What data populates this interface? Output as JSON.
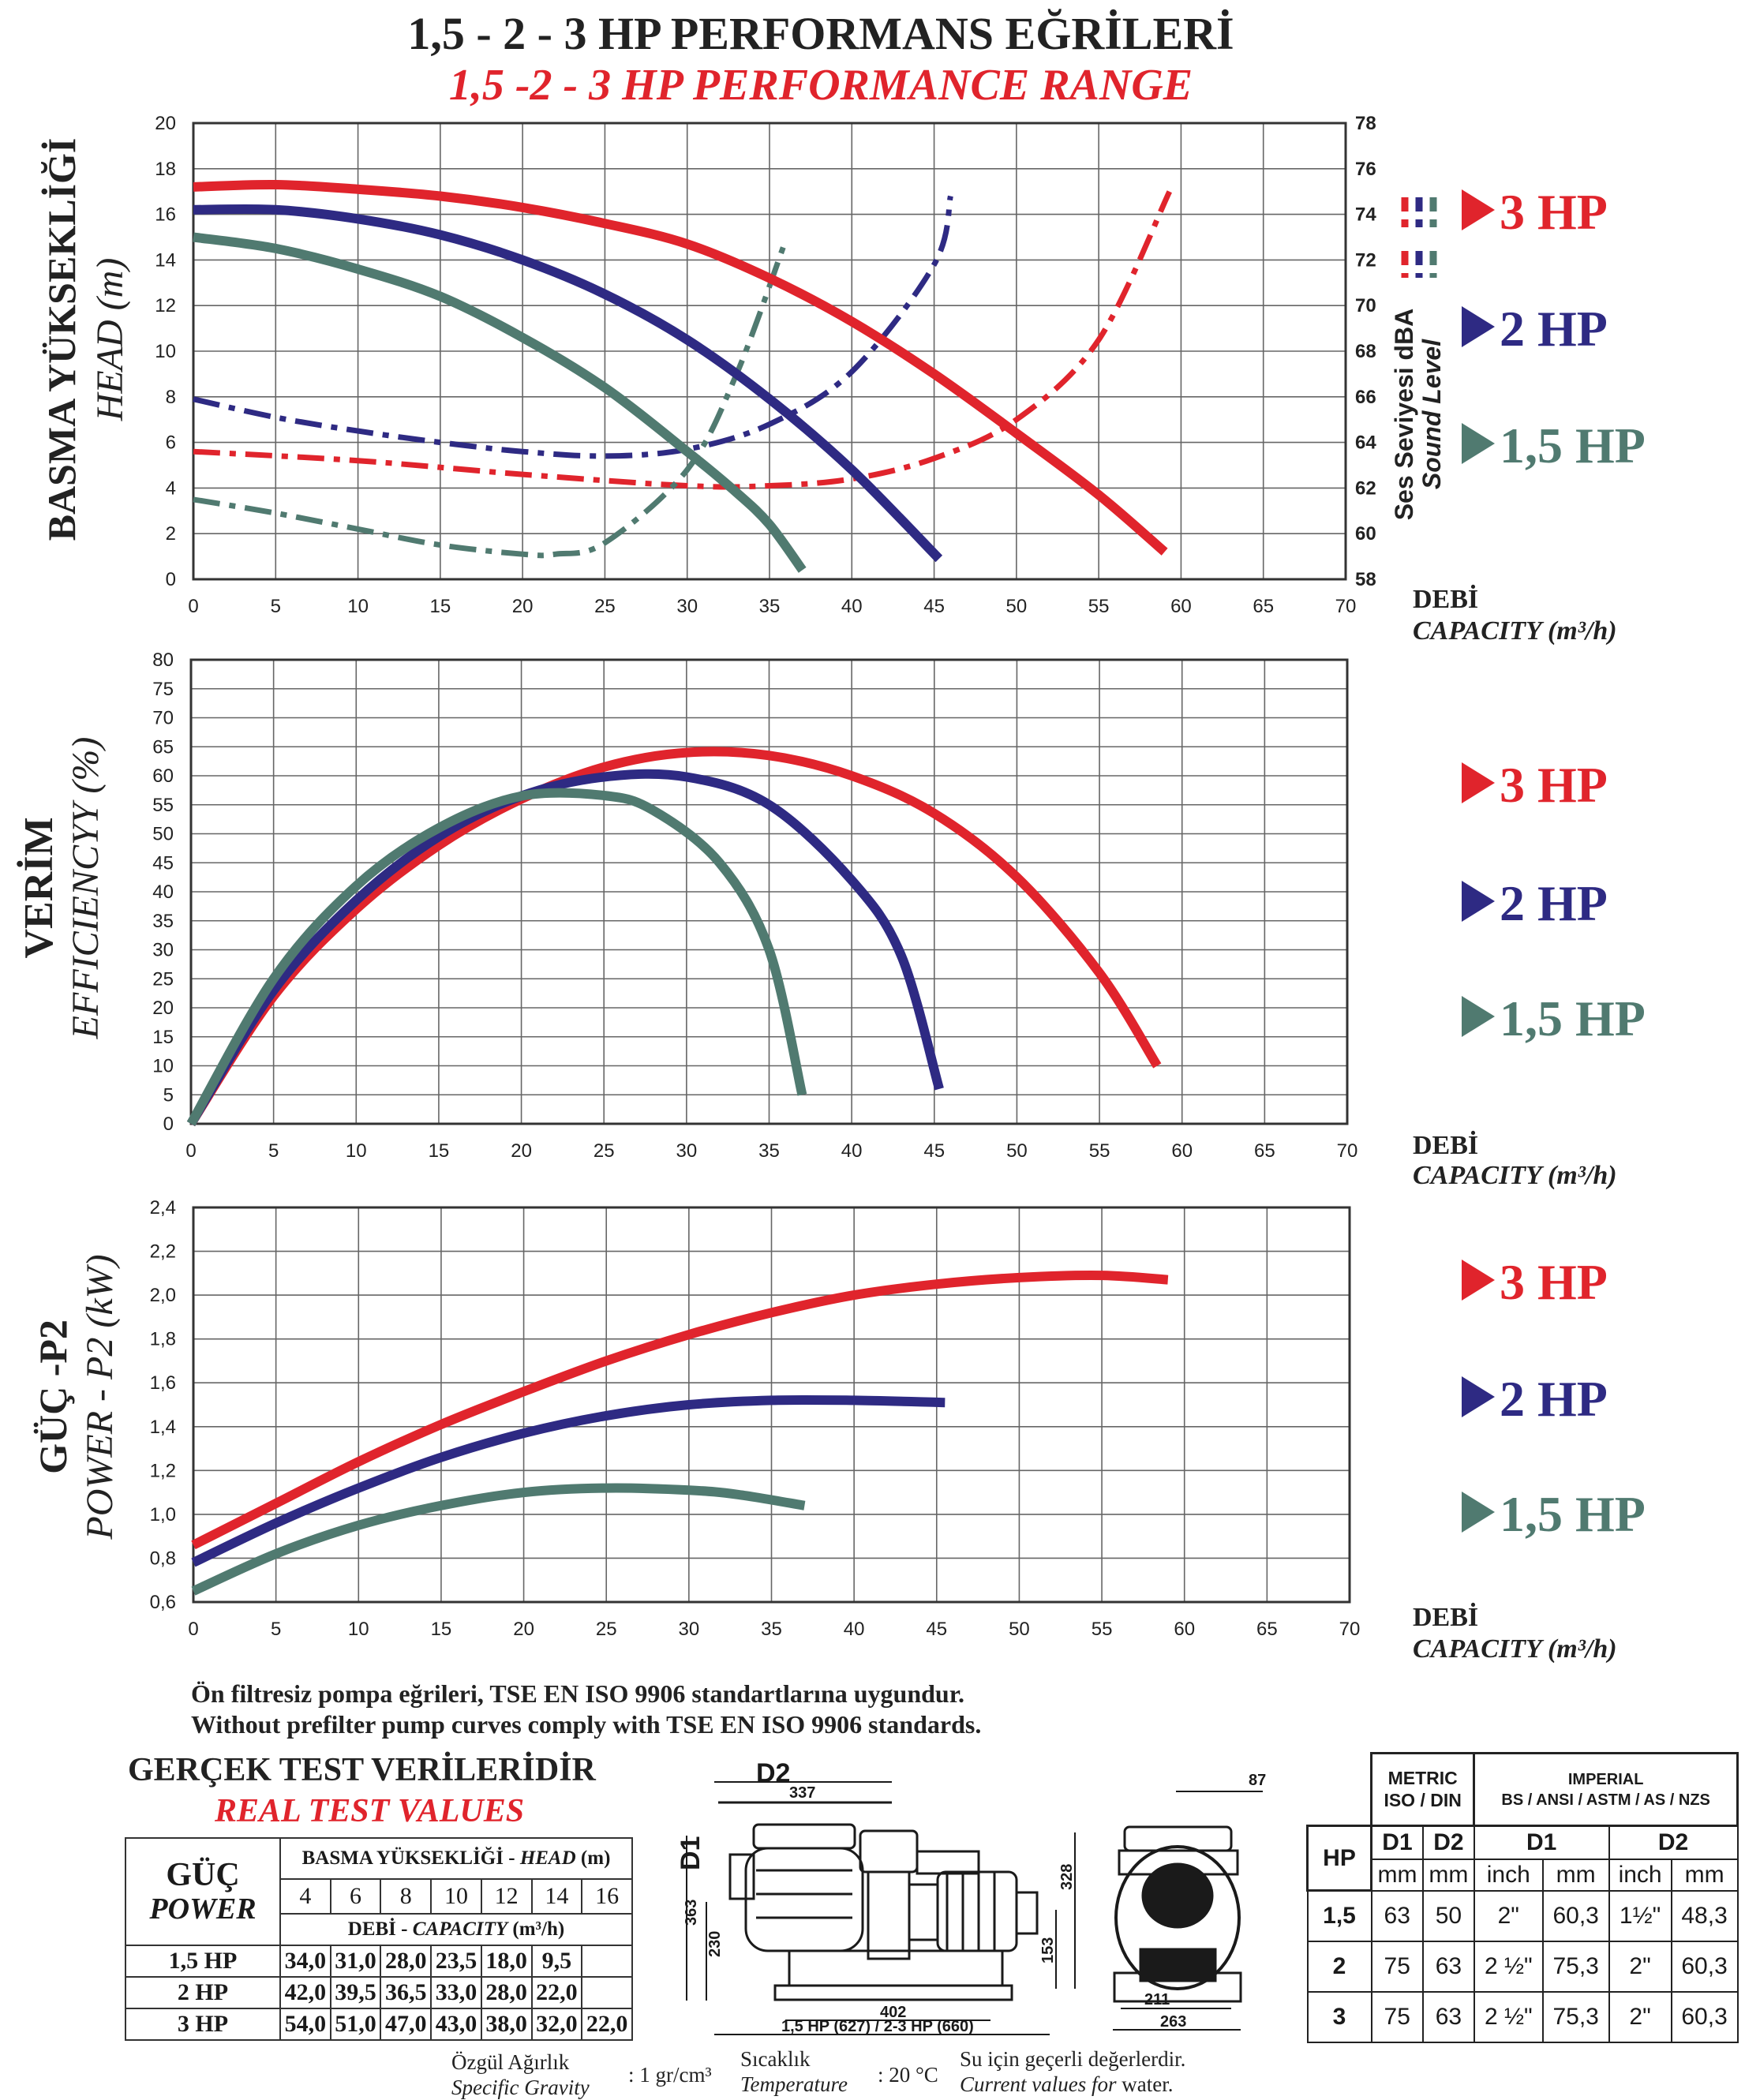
{
  "title": {
    "tr": "1,5 - 2 - 3 HP PERFORMANS EĞRİLERİ",
    "en": "1,5 -2 - 3 HP PERFORMANCE RANGE"
  },
  "colors": {
    "hp3": "#e0242c",
    "hp2": "#2e2a83",
    "hp15": "#507a70"
  },
  "legend_labels": [
    "3 HP",
    "2 HP",
    "1,5 HP"
  ],
  "chart_data": [
    {
      "type": "line",
      "id": "head",
      "ylabel_tr": "BASMA YÜKSEKLİĞİ",
      "ylabel_en": "HEAD (m)",
      "y2label_tr": "Ses Seviyesi dBA",
      "y2label_en": "Sound Level",
      "xlabel_tr": "DEBİ",
      "xlabel_en": "CAPACITY (m³/h)",
      "xlim": [
        0,
        70
      ],
      "ylim": [
        0,
        20
      ],
      "y2lim": [
        58,
        78
      ],
      "xticks": [
        "0",
        "5",
        "10",
        "15",
        "20",
        "25",
        "30",
        "35",
        "40",
        "45",
        "50",
        "55",
        "60",
        "65",
        "70"
      ],
      "yticks": [
        "0",
        "2",
        "4",
        "6",
        "8",
        "10",
        "12",
        "14",
        "16",
        "18",
        "20"
      ],
      "y2ticks": [
        "58",
        "60",
        "62",
        "64",
        "66",
        "68",
        "70",
        "72",
        "74",
        "76",
        "78"
      ],
      "series": [
        {
          "name": "3 HP",
          "x": [
            0,
            5,
            10,
            15,
            20,
            25,
            30,
            35,
            40,
            45,
            50,
            55,
            59
          ],
          "values": [
            17.2,
            17.3,
            17.1,
            16.8,
            16.3,
            15.6,
            14.7,
            13.2,
            11.3,
            9.0,
            6.4,
            3.7,
            1.2
          ]
        },
        {
          "name": "2 HP",
          "x": [
            0,
            5,
            10,
            15,
            20,
            25,
            30,
            35,
            40,
            45.3
          ],
          "values": [
            16.2,
            16.2,
            15.8,
            15.1,
            14.0,
            12.5,
            10.5,
            7.9,
            4.8,
            0.9
          ]
        },
        {
          "name": "1,5 HP",
          "x": [
            0,
            5,
            10,
            15,
            20,
            25,
            30,
            33,
            35,
            37
          ],
          "values": [
            15.0,
            14.5,
            13.6,
            12.4,
            10.6,
            8.4,
            5.6,
            3.8,
            2.4,
            0.4
          ]
        }
      ],
      "sound_series": [
        {
          "name": "3 HP",
          "x": [
            0,
            10,
            20,
            30,
            35,
            40,
            45,
            50,
            55,
            59.3
          ],
          "values": [
            63.6,
            63.2,
            62.6,
            62.1,
            62.1,
            62.4,
            63.3,
            65.0,
            68.5,
            75.0
          ]
        },
        {
          "name": "2 HP",
          "x": [
            0,
            5,
            10,
            15,
            20,
            25,
            30,
            35,
            40,
            45,
            46
          ],
          "values": [
            65.9,
            65.1,
            64.5,
            64.0,
            63.6,
            63.4,
            63.7,
            64.8,
            67.1,
            71.8,
            74.8
          ]
        },
        {
          "name": "1,5 HP",
          "x": [
            0,
            5,
            10,
            15,
            20,
            22,
            25,
            30,
            33,
            36
          ],
          "values": [
            61.5,
            60.9,
            60.2,
            59.5,
            59.1,
            59.1,
            59.6,
            62.8,
            67.0,
            72.9
          ]
        }
      ]
    },
    {
      "type": "line",
      "id": "efficiency",
      "ylabel_tr": "VERİM",
      "ylabel_en": "EFFICIENCYY (%)",
      "xlabel_tr": "DEBİ",
      "xlabel_en": "CAPACITY (m³/h)",
      "xlim": [
        0,
        70
      ],
      "ylim": [
        0,
        80
      ],
      "xticks": [
        "0",
        "5",
        "10",
        "15",
        "20",
        "25",
        "30",
        "35",
        "40",
        "45",
        "50",
        "55",
        "60",
        "65",
        "70"
      ],
      "yticks": [
        "0",
        "5",
        "10",
        "15",
        "20",
        "25",
        "30",
        "35",
        "40",
        "45",
        "50",
        "55",
        "60",
        "65",
        "70",
        "75",
        "80"
      ],
      "series": [
        {
          "name": "3 HP",
          "x": [
            0,
            5,
            10,
            15,
            20,
            25,
            30,
            35,
            40,
            45,
            50,
            55,
            58.5
          ],
          "values": [
            0,
            22,
            37,
            48,
            56,
            61.5,
            64,
            63.5,
            60,
            53.5,
            42.5,
            26,
            10
          ]
        },
        {
          "name": "2 HP",
          "x": [
            0,
            5,
            10,
            15,
            20,
            25,
            30,
            35,
            40,
            43,
            45.3
          ],
          "values": [
            0,
            23,
            38.5,
            49.5,
            56.5,
            59.8,
            59.8,
            55,
            42,
            29,
            6
          ]
        },
        {
          "name": "1,5 HP",
          "x": [
            0,
            5,
            10,
            15,
            20,
            25,
            28,
            32,
            35,
            37
          ],
          "values": [
            0,
            25,
            41,
            51,
            56.5,
            56.6,
            54,
            45,
            30,
            5
          ]
        }
      ]
    },
    {
      "type": "line",
      "id": "power",
      "ylabel_tr": "GÜÇ -P2",
      "ylabel_en": "POWER - P2 (kW)",
      "xlabel_tr": "DEBİ",
      "xlabel_en": "CAPACITY (m³/h)",
      "xlim": [
        0,
        70
      ],
      "ylim": [
        0.6,
        2.4
      ],
      "xticks": [
        "0",
        "5",
        "10",
        "15",
        "20",
        "25",
        "30",
        "35",
        "40",
        "45",
        "50",
        "55",
        "60",
        "65",
        "70"
      ],
      "yticks": [
        "0,6",
        "0,8",
        "1,0",
        "1,2",
        "1,4",
        "1,6",
        "1,8",
        "2,0",
        "2,2",
        "2,4"
      ],
      "series": [
        {
          "name": "3 HP",
          "x": [
            0,
            5,
            10,
            15,
            20,
            25,
            30,
            35,
            40,
            45,
            50,
            55,
            59
          ],
          "values": [
            0.86,
            1.05,
            1.24,
            1.41,
            1.56,
            1.7,
            1.82,
            1.92,
            2.0,
            2.05,
            2.08,
            2.09,
            2.07
          ]
        },
        {
          "name": "2 HP",
          "x": [
            0,
            5,
            10,
            15,
            20,
            25,
            30,
            35,
            40,
            45.5
          ],
          "values": [
            0.78,
            0.96,
            1.12,
            1.26,
            1.37,
            1.45,
            1.5,
            1.52,
            1.52,
            1.51
          ]
        },
        {
          "name": "1,5 HP",
          "x": [
            0,
            5,
            10,
            15,
            20,
            25,
            30,
            33,
            37
          ],
          "values": [
            0.65,
            0.82,
            0.95,
            1.04,
            1.1,
            1.12,
            1.11,
            1.09,
            1.04
          ]
        }
      ]
    }
  ],
  "note": {
    "tr": "Ön filtresiz pompa eğrileri, TSE EN ISO 9906 standartlarına uygundur.",
    "en": "Without prefilter pump curves comply with TSE EN ISO 9906 standards."
  },
  "real_test": {
    "title_tr": "GERÇEK TEST VERİLERİDİR",
    "title_en": "REAL TEST VALUES",
    "power_tr": "GÜÇ",
    "power_en": "POWER",
    "head_label_tr": "BASMA YÜKSEKLİĞİ - ",
    "head_label_en": "HEAD",
    "head_label_unit": " (m)",
    "capacity_label_tr": "DEBİ - ",
    "capacity_label_en": "CAPACITY",
    "capacity_label_unit": " (m³/h)",
    "heads": [
      "4",
      "6",
      "8",
      "10",
      "12",
      "14",
      "16"
    ],
    "rows": [
      {
        "hp": "1,5 HP",
        "values": [
          "34,0",
          "31,0",
          "28,0",
          "23,5",
          "18,0",
          "9,5",
          ""
        ]
      },
      {
        "hp": "2 HP",
        "values": [
          "42,0",
          "39,5",
          "36,5",
          "33,0",
          "28,0",
          "22,0",
          ""
        ]
      },
      {
        "hp": "3 HP",
        "values": [
          "54,0",
          "51,0",
          "47,0",
          "43,0",
          "38,0",
          "32,0",
          "22,0"
        ]
      }
    ]
  },
  "drawing": {
    "label_d2": "D2",
    "label_d1": "D1",
    "dims": [
      "337",
      "363",
      "230",
      "328",
      "153",
      "402",
      "1,5 HP (627)  /  2-3 HP (660)",
      "87",
      "211",
      "263"
    ]
  },
  "dim_table": {
    "metric_title": "METRIC",
    "metric_sub": "ISO / DIN",
    "imperial_title": "IMPERIAL",
    "imperial_sub": "BS / ANSI / ASTM / AS /  NZS",
    "hp_label": "HP",
    "d1": "D1",
    "d2": "D2",
    "unit_mm": "mm",
    "unit_inch": "inch",
    "rows": [
      {
        "hp": "1,5",
        "d1mm": "63",
        "d2mm": "50",
        "d1in": "2\"",
        "d1inmm": "60,3",
        "d2in": "1½\"",
        "d2inmm": "48,3"
      },
      {
        "hp": "2",
        "d1mm": "75",
        "d2mm": "63",
        "d1in": "2 ½\"",
        "d1inmm": "75,3",
        "d2in": "2\"",
        "d2inmm": "60,3"
      },
      {
        "hp": "3",
        "d1mm": "75",
        "d2mm": "63",
        "d1in": "2 ½\"",
        "d1inmm": "75,3",
        "d2in": "2\"",
        "d2inmm": "60,3"
      }
    ]
  },
  "footer": {
    "gravity_tr": "Özgül Ağırlık",
    "gravity_en": "Specific Gravity",
    "gravity_val": ": 1 gr/cm³",
    "temp_tr": "Sıcaklık",
    "temp_en": "Temperature",
    "temp_val": ": 20 °C",
    "water_tr": "Su için geçerli değerlerdir.",
    "water_en_a": "Current values for",
    "water_en_b": " water."
  }
}
